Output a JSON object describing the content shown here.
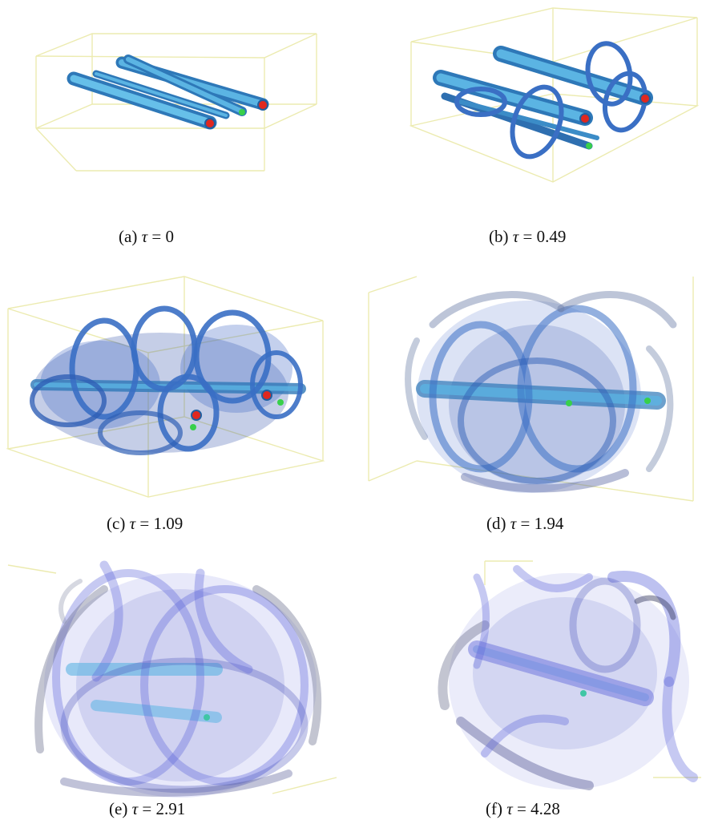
{
  "figure": {
    "panels": [
      {
        "label": "(a)",
        "symbol": "τ",
        "eq": "=",
        "value": "0",
        "stage": "aligned"
      },
      {
        "label": "(b)",
        "symbol": "τ",
        "eq": "=",
        "value": "0.49",
        "stage": "rings"
      },
      {
        "label": "(c)",
        "symbol": "τ",
        "eq": "=",
        "value": "1.09",
        "stage": "growth"
      },
      {
        "label": "(d)",
        "symbol": "τ",
        "eq": "=",
        "value": "1.94",
        "stage": "spread"
      },
      {
        "label": "(e)",
        "symbol": "τ",
        "eq": "=",
        "value": "2.91",
        "stage": "turbulent"
      },
      {
        "label": "(f)",
        "symbol": "τ",
        "eq": "=",
        "value": "4.28",
        "stage": "decayed"
      }
    ],
    "colors": {
      "box_edge": "#ecebb0",
      "tube_core": "#5bb4e3",
      "tube_edge": "#2e78b8",
      "ring": "#3a6fc4",
      "turbulent": "#5b63d9",
      "tip_red": "#e0281f",
      "tip_green": "#38d04a"
    }
  }
}
